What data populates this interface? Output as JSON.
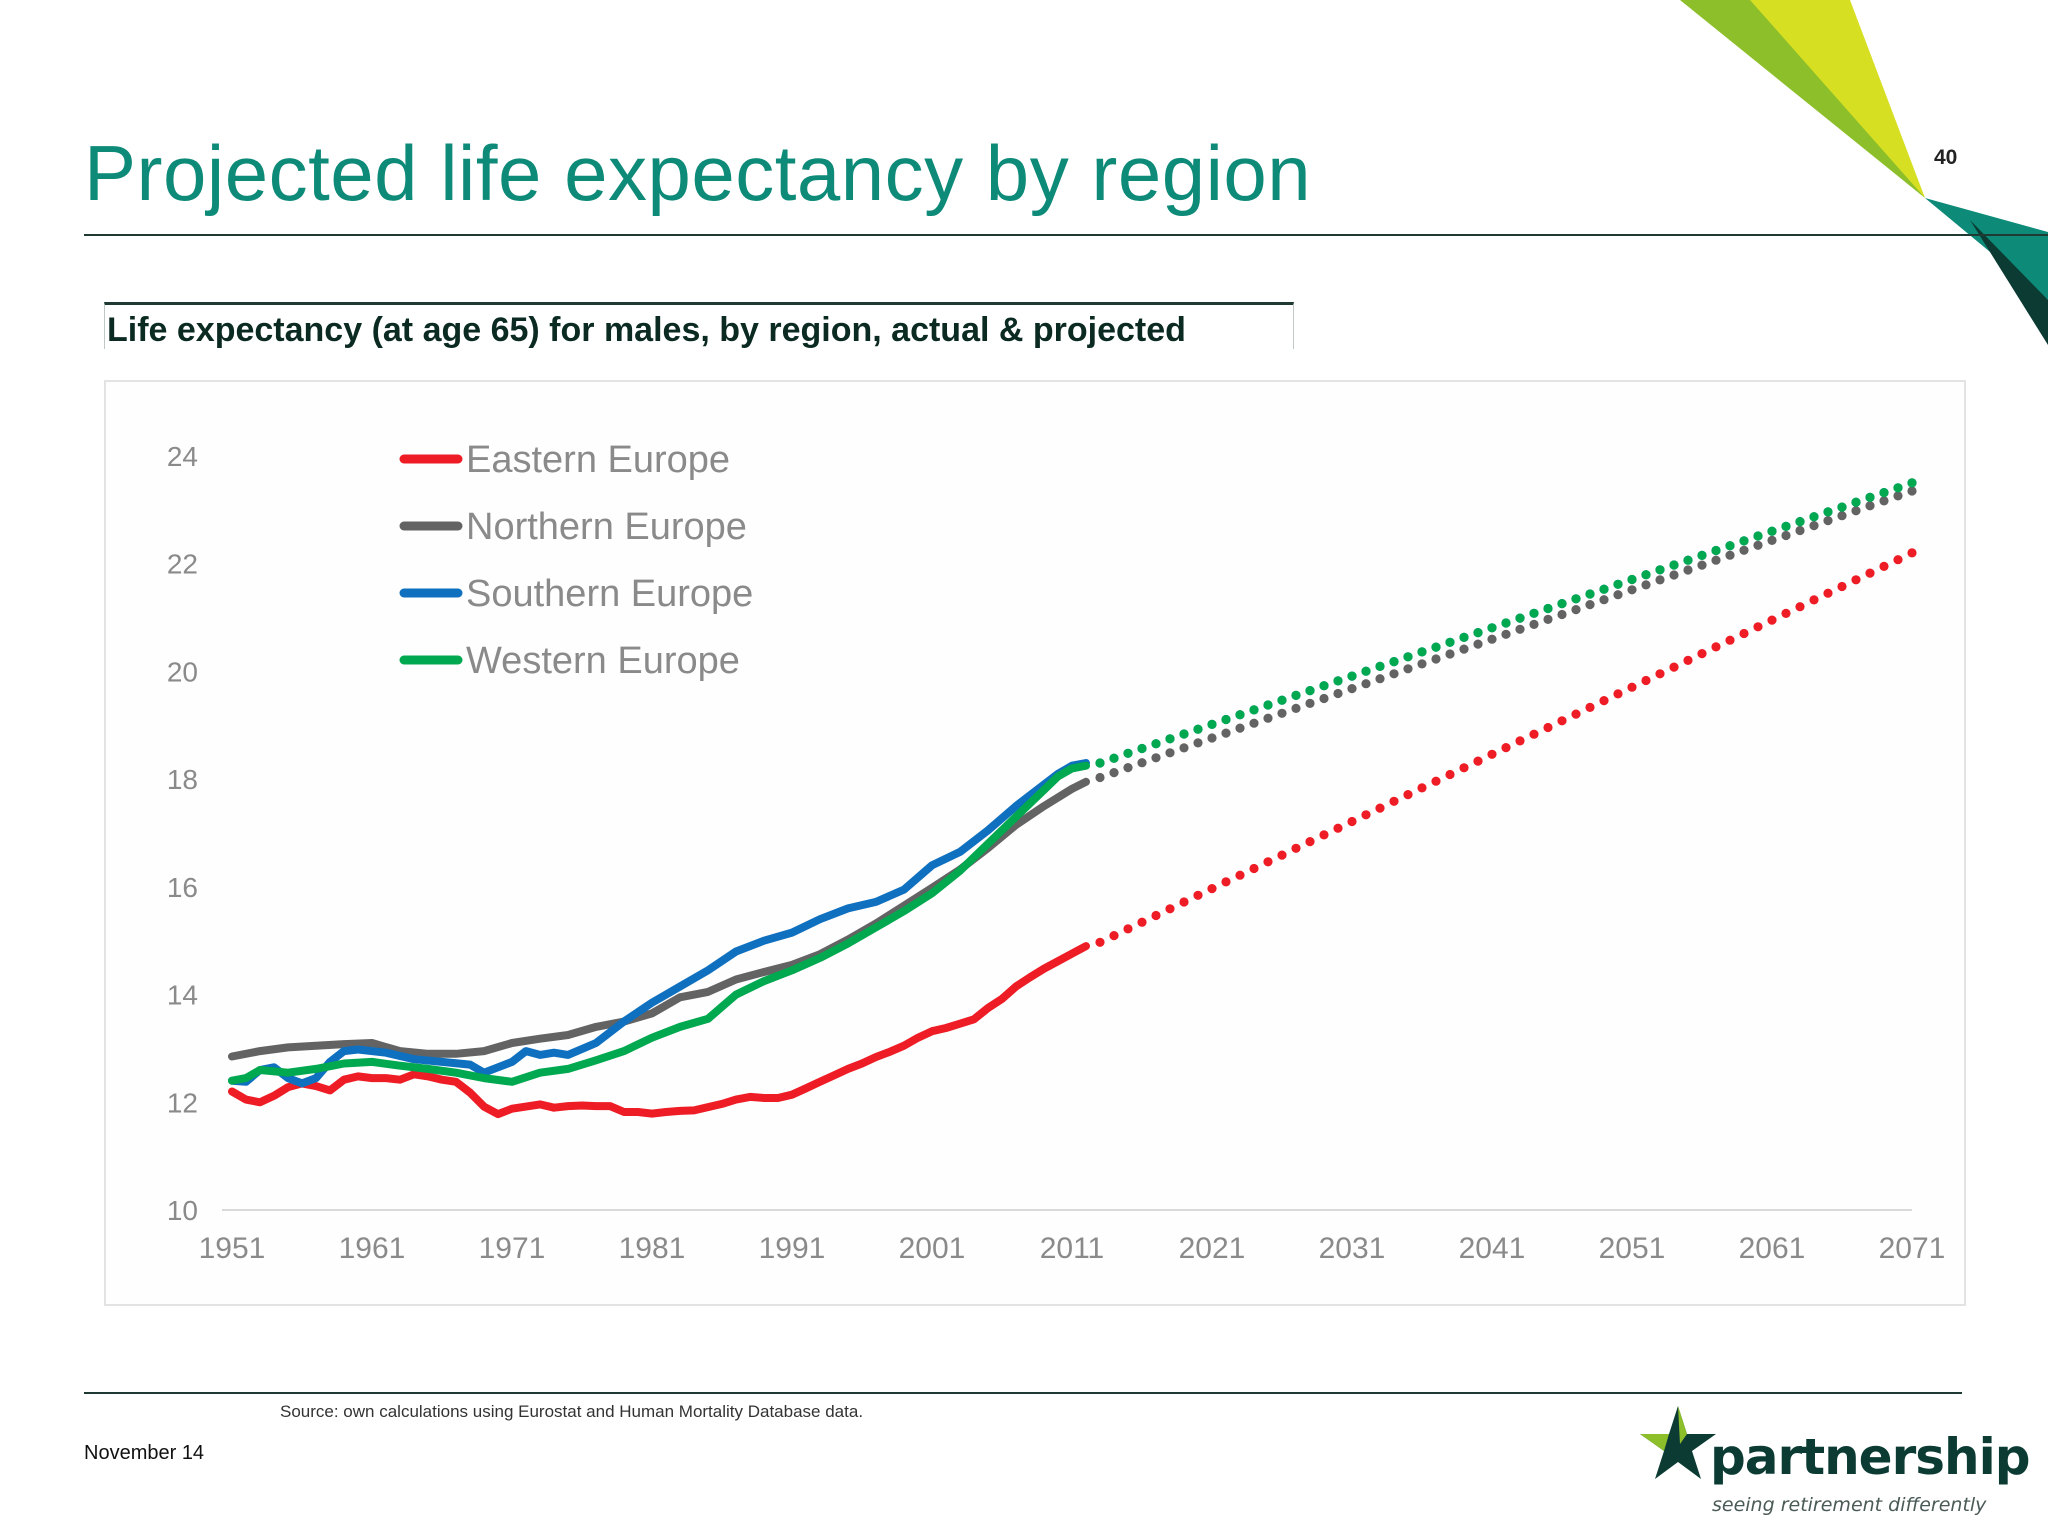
{
  "slide": {
    "title": "Projected life expectancy by region",
    "page_number": "40",
    "chart_title": "Life expectancy (at age 65) for males, by region, actual & projected",
    "source": "Source: own calculations using Eurostat and Human Mortality Database data.",
    "date": "November 14"
  },
  "logo": {
    "name": "partnership",
    "tagline": "seeing retirement differently"
  },
  "colors": {
    "title": "#0d8a78",
    "eastern": "#ee1c25",
    "northern": "#636363",
    "southern": "#0f70c0",
    "western": "#00a84f"
  },
  "chart_data": {
    "type": "line",
    "title": "Life expectancy (at age 65) for males, by region, actual & projected",
    "xlim": [
      1951,
      2071
    ],
    "ylim": [
      10,
      24
    ],
    "x_ticks": [
      "1951",
      "1961",
      "1971",
      "1981",
      "1991",
      "2001",
      "2011",
      "2021",
      "2031",
      "2041",
      "2051",
      "2061",
      "2071"
    ],
    "y_ticks": [
      "10",
      "12",
      "14",
      "16",
      "18",
      "20",
      "22",
      "24"
    ],
    "grid": false,
    "legend_position": "top-left",
    "series": [
      {
        "name": "Eastern Europe",
        "color": "#ee1c25",
        "actual_x": [
          1951,
          1952,
          1953,
          1954,
          1955,
          1956,
          1957,
          1958,
          1959,
          1960,
          1961,
          1962,
          1963,
          1964,
          1965,
          1966,
          1967,
          1968,
          1969,
          1970,
          1971,
          1972,
          1973,
          1974,
          1975,
          1976,
          1977,
          1978,
          1979,
          1980,
          1981,
          1982,
          1983,
          1984,
          1985,
          1986,
          1987,
          1988,
          1989,
          1990,
          1991,
          1992,
          1993,
          1994,
          1995,
          1996,
          1997,
          1998,
          1999,
          2000,
          2001,
          2002,
          2003,
          2004,
          2005,
          2006,
          2007,
          2008,
          2009,
          2010,
          2011,
          2012
        ],
        "actual_y": [
          12.2,
          12.05,
          12.0,
          12.12,
          12.28,
          12.35,
          12.3,
          12.22,
          12.42,
          12.48,
          12.45,
          12.45,
          12.42,
          12.52,
          12.48,
          12.42,
          12.38,
          12.18,
          11.92,
          11.78,
          11.88,
          11.92,
          11.96,
          11.9,
          11.93,
          11.94,
          11.93,
          11.93,
          11.82,
          11.82,
          11.79,
          11.82,
          11.84,
          11.85,
          11.91,
          11.97,
          12.05,
          12.1,
          12.08,
          12.08,
          12.14,
          12.26,
          12.38,
          12.5,
          12.62,
          12.72,
          12.84,
          12.94,
          13.05,
          13.2,
          13.32,
          13.38,
          13.46,
          13.54,
          13.75,
          13.92,
          14.15,
          14.32,
          14.48,
          14.62,
          14.76,
          14.9
        ],
        "projected_x": [
          2013,
          2071
        ],
        "projected_y": [
          14.97,
          22.2
        ]
      },
      {
        "name": "Northern Europe",
        "color": "#636363",
        "actual_x": [
          1951,
          1953,
          1955,
          1957,
          1959,
          1961,
          1963,
          1965,
          1967,
          1969,
          1971,
          1973,
          1975,
          1977,
          1979,
          1981,
          1983,
          1985,
          1987,
          1989,
          1991,
          1993,
          1995,
          1997,
          1999,
          2001,
          2003,
          2005,
          2007,
          2009,
          2011,
          2012
        ],
        "actual_y": [
          12.85,
          12.95,
          13.02,
          13.05,
          13.08,
          13.1,
          12.95,
          12.9,
          12.9,
          12.95,
          13.1,
          13.18,
          13.25,
          13.4,
          13.5,
          13.65,
          13.95,
          14.05,
          14.28,
          14.42,
          14.55,
          14.75,
          15.02,
          15.32,
          15.65,
          15.98,
          16.32,
          16.72,
          17.15,
          17.5,
          17.82,
          17.95
        ],
        "projected_x": [
          2013,
          2071
        ],
        "projected_y": [
          18.03,
          23.35
        ]
      },
      {
        "name": "Southern Europe",
        "color": "#0f70c0",
        "actual_x": [
          1951,
          1952,
          1953,
          1954,
          1955,
          1956,
          1957,
          1958,
          1959,
          1960,
          1962,
          1964,
          1966,
          1968,
          1969,
          1970,
          1971,
          1972,
          1973,
          1974,
          1975,
          1977,
          1979,
          1981,
          1983,
          1985,
          1987,
          1989,
          1991,
          1993,
          1995,
          1997,
          1999,
          2001,
          2003,
          2005,
          2007,
          2009,
          2010,
          2011,
          2012
        ],
        "actual_y": [
          12.4,
          12.38,
          12.6,
          12.65,
          12.45,
          12.35,
          12.45,
          12.75,
          12.95,
          12.98,
          12.92,
          12.8,
          12.75,
          12.7,
          12.55,
          12.65,
          12.75,
          12.95,
          12.88,
          12.92,
          12.88,
          13.1,
          13.5,
          13.85,
          14.15,
          14.45,
          14.8,
          15.0,
          15.15,
          15.4,
          15.6,
          15.72,
          15.95,
          16.4,
          16.65,
          17.05,
          17.5,
          17.9,
          18.1,
          18.25,
          18.3
        ],
        "projected_x": [
          2013,
          2071
        ],
        "projected_y": [
          18.3,
          23.5
        ]
      },
      {
        "name": "Western Europe",
        "color": "#00a84f",
        "actual_x": [
          1951,
          1952,
          1953,
          1955,
          1957,
          1959,
          1961,
          1963,
          1965,
          1967,
          1969,
          1971,
          1973,
          1975,
          1977,
          1979,
          1981,
          1983,
          1985,
          1987,
          1989,
          1991,
          1993,
          1995,
          1997,
          1999,
          2001,
          2003,
          2005,
          2007,
          2009,
          2010,
          2011,
          2012
        ],
        "actual_y": [
          12.4,
          12.45,
          12.6,
          12.55,
          12.62,
          12.72,
          12.75,
          12.68,
          12.62,
          12.55,
          12.45,
          12.38,
          12.55,
          12.62,
          12.78,
          12.95,
          13.2,
          13.4,
          13.55,
          14.0,
          14.25,
          14.45,
          14.68,
          14.95,
          15.25,
          15.55,
          15.88,
          16.3,
          16.8,
          17.3,
          17.8,
          18.05,
          18.2,
          18.25
        ],
        "projected_x": [
          2013,
          2071
        ],
        "projected_y": [
          18.3,
          23.5
        ]
      }
    ]
  }
}
